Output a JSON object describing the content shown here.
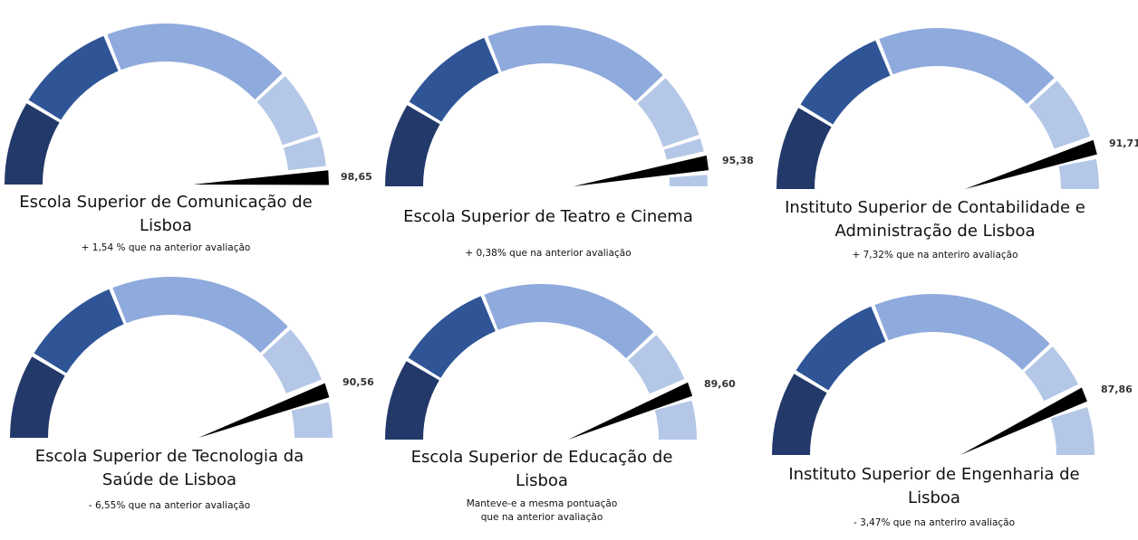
{
  "colors": {
    "band1": "#23396a",
    "band2": "#2f5597",
    "band3": "#8faadc",
    "band4": "#b4c7e7",
    "band5": "#b4c7e7",
    "needle": "#000000"
  },
  "chart_data": [
    {
      "type": "gauge",
      "value": 98.65,
      "value_label": "98,65",
      "title_lines": [
        "Escola Superior de Comunicação de",
        "Lisboa"
      ],
      "note_lines": [
        "+ 1,54 % que na anterior avaliação"
      ]
    },
    {
      "type": "gauge",
      "value": 95.38,
      "value_label": "95,38",
      "title_lines": [
        "Escola Superior de Teatro e Cinema"
      ],
      "note_lines": [
        "+ 0,38% que na anterior avaliação"
      ]
    },
    {
      "type": "gauge",
      "value": 91.71,
      "value_label": "91,71",
      "title_lines": [
        "Instituto Superior de Contabilidade e",
        "Administração de Lisboa"
      ],
      "note_lines": [
        "+ 7,32% que na anteriro avaliação"
      ]
    },
    {
      "type": "gauge",
      "value": 90.56,
      "value_label": "90,56",
      "title_lines": [
        "Escola Superior de Tecnologia da",
        "Saúde de Lisboa"
      ],
      "note_lines": [
        "- 6,55% que na anterior avaliação"
      ]
    },
    {
      "type": "gauge",
      "value": 89.6,
      "value_label": "89,60",
      "title_lines": [
        "Escola Superior de Educação de",
        "Lisboa"
      ],
      "note_lines": [
        "Manteve-e a mesma pontuação",
        "que na anterior avaliação"
      ]
    },
    {
      "type": "gauge",
      "value": 87.86,
      "value_label": "87,86",
      "title_lines": [
        "Instituto Superior de Engenharia de",
        "Lisboa"
      ],
      "note_lines": [
        "- 3,47% que na anteriro avaliação"
      ]
    }
  ]
}
